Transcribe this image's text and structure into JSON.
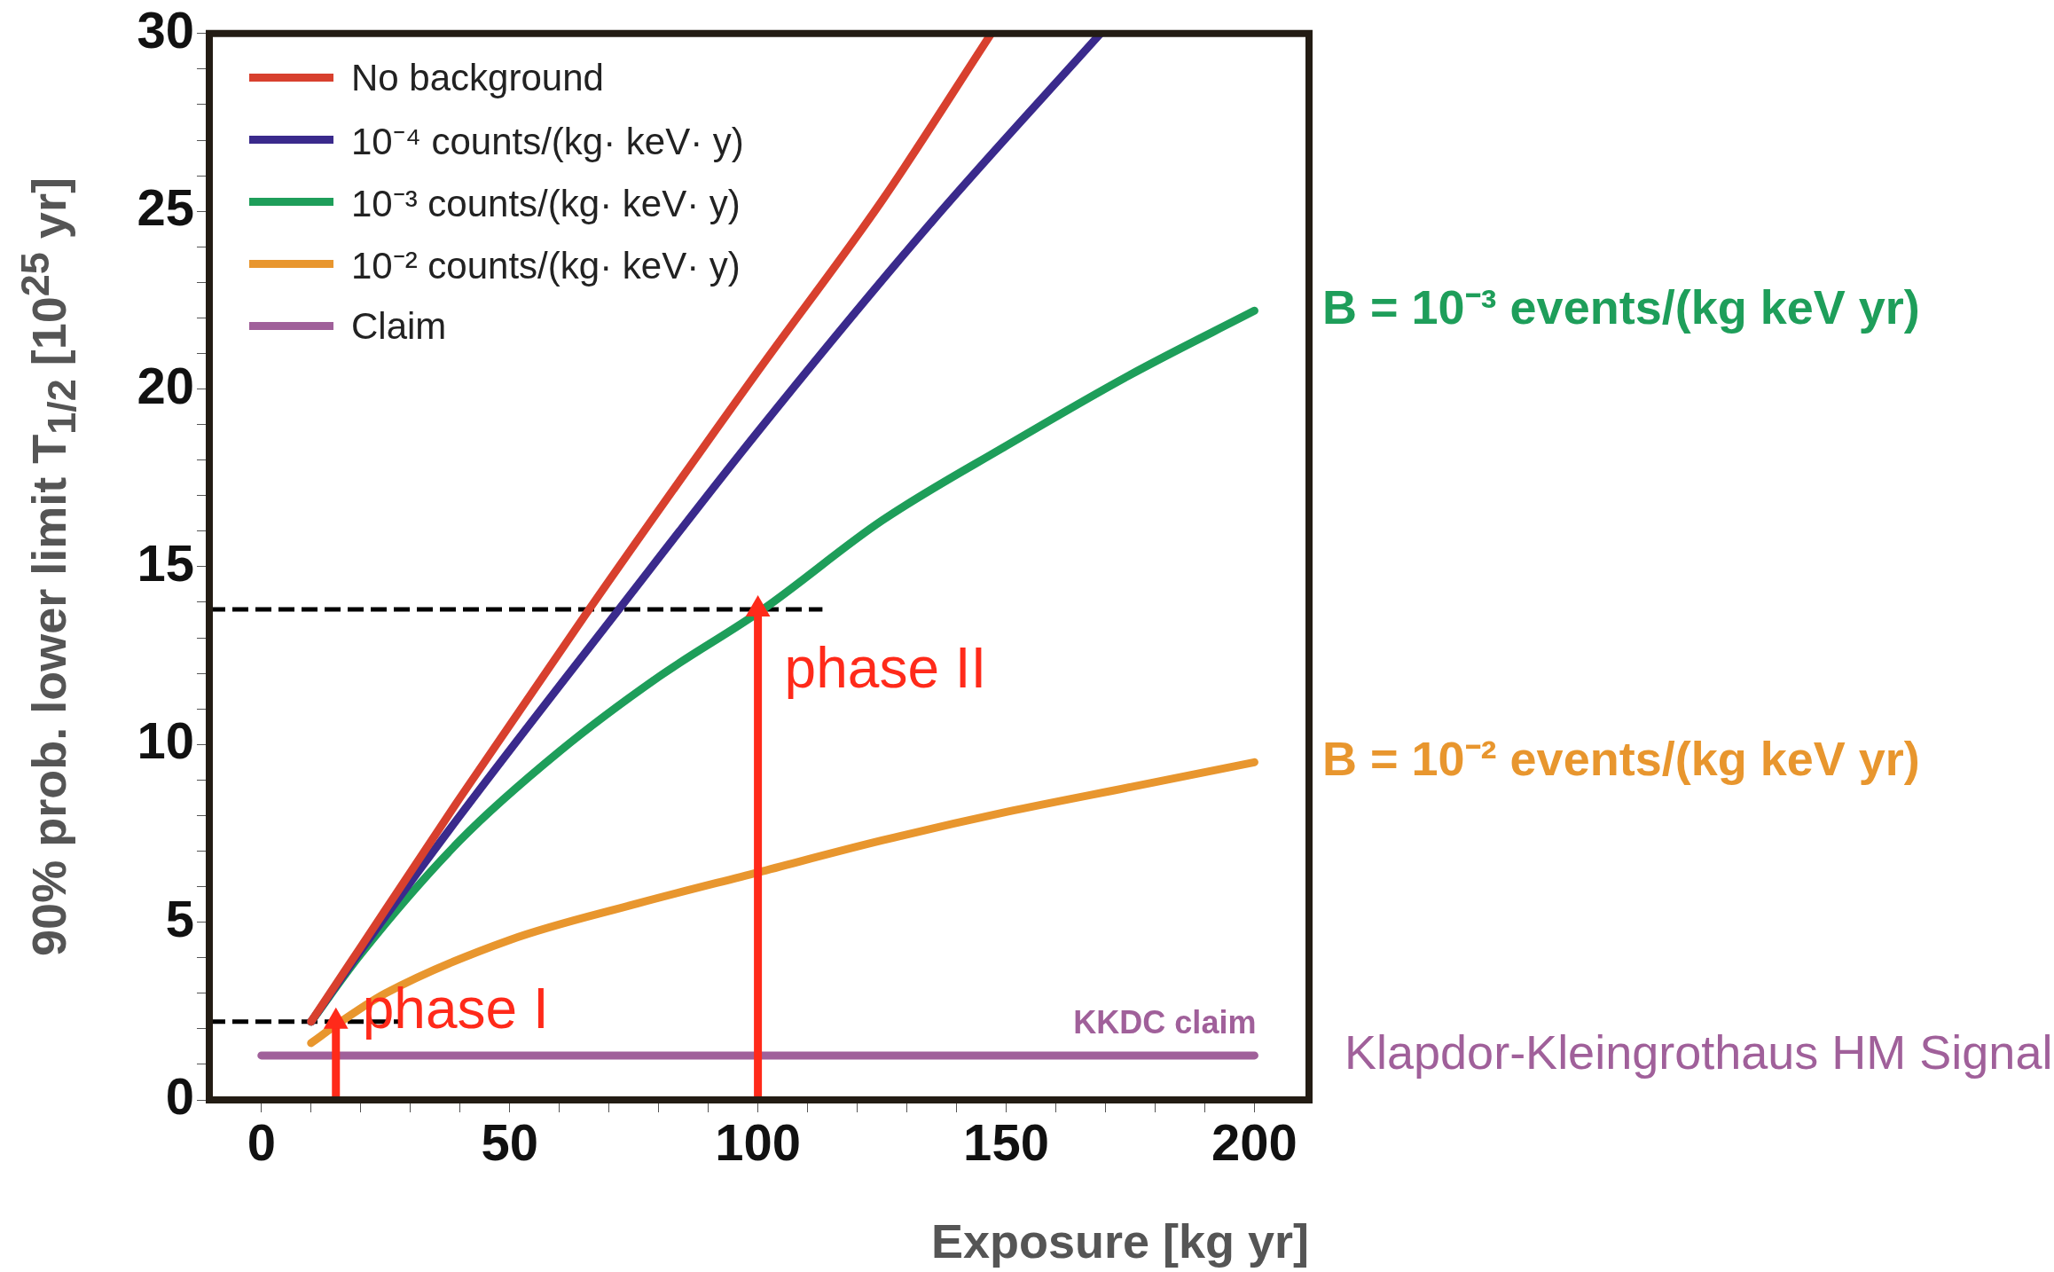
{
  "chart_data": {
    "type": "line",
    "xlabel": "Exposure [kg yr]",
    "ylabel": "90% prob. lower limit T$_{1/2}$ [10$^{25}$ yr]",
    "xlim": [
      -10.5,
      211
    ],
    "ylim": [
      0,
      30
    ],
    "xticks": [
      0,
      {
        "value": 10,
        "label": null
      },
      {
        "value": 20,
        "label": null
      },
      {
        "value": 30,
        "label": null
      },
      {
        "value": 40,
        "label": null
      },
      50,
      {
        "value": 60,
        "label": null
      },
      {
        "value": 70,
        "label": null
      },
      {
        "value": 80,
        "label": null
      },
      {
        "value": 90,
        "label": null
      },
      100,
      {
        "value": 110,
        "label": null
      },
      {
        "value": 120,
        "label": null
      },
      {
        "value": 130,
        "label": null
      },
      {
        "value": 140,
        "label": null
      },
      150,
      {
        "value": 160,
        "label": null
      },
      {
        "value": 170,
        "label": null
      },
      {
        "value": 180,
        "label": null
      },
      {
        "value": 190,
        "label": null
      },
      200
    ],
    "yticks": [
      0,
      {
        "value": 1,
        "label": null
      },
      {
        "value": 2,
        "label": null
      },
      {
        "value": 3,
        "label": null
      },
      {
        "value": 4,
        "label": null
      },
      5,
      {
        "value": 6,
        "label": null
      },
      {
        "value": 7,
        "label": null
      },
      {
        "value": 8,
        "label": null
      },
      {
        "value": 9,
        "label": null
      },
      10,
      {
        "value": 11,
        "label": null
      },
      {
        "value": 12,
        "label": null
      },
      {
        "value": 13,
        "label": null
      },
      {
        "value": 14,
        "label": null
      },
      15,
      {
        "value": 16,
        "label": null
      },
      {
        "value": 17,
        "label": null
      },
      {
        "value": 18,
        "label": null
      },
      {
        "value": 19,
        "label": null
      },
      20,
      {
        "value": 21,
        "label": null
      },
      {
        "value": 22,
        "label": null
      },
      {
        "value": 23,
        "label": null
      },
      {
        "value": 24,
        "label": null
      },
      25,
      {
        "value": 26,
        "label": null
      },
      {
        "value": 27,
        "label": null
      },
      {
        "value": 28,
        "label": null
      },
      {
        "value": 29,
        "label": null
      },
      30
    ],
    "grid": false,
    "legend": "top left",
    "marker": "none",
    "line_style": "solid",
    "series": [
      {
        "name": "No background",
        "color": "#d8402e",
        "x": [
          10,
          20,
          40,
          66,
          100,
          125,
          147
        ],
        "values": [
          2.2,
          4.3,
          8.5,
          13.8,
          20.5,
          25.3,
          30
        ]
      },
      {
        "name": "10⁻⁴ counts/(kg· keV· y)",
        "color": "#3a2a8c",
        "x": [
          10,
          20,
          40,
          72,
          100,
          135,
          169
        ],
        "values": [
          2.2,
          4.2,
          8.0,
          13.8,
          18.8,
          24.7,
          30
        ]
      },
      {
        "name": "10⁻³ counts/(kg· keV· y)",
        "color": "#1e9e5a",
        "x": [
          10,
          20,
          40,
          60,
          80,
          101,
          125,
          150,
          175,
          200
        ],
        "values": [
          2.2,
          4.1,
          7.3,
          9.8,
          11.9,
          13.8,
          16.3,
          18.4,
          20.4,
          22.2
        ]
      },
      {
        "name": "10⁻² counts/(kg· keV· y)",
        "color": "#e8962e",
        "x": [
          10,
          16,
          25,
          50,
          75,
          100,
          125,
          150,
          175,
          200
        ],
        "values": [
          1.6,
          2.2,
          3.0,
          4.5,
          5.5,
          6.4,
          7.3,
          8.1,
          8.8,
          9.5
        ]
      },
      {
        "name": "Claim",
        "color": "#a0609a",
        "x": [
          0,
          200
        ],
        "values": [
          1.25,
          1.25
        ]
      },
      {
        "color": "#000000",
        "line_style": "dashed",
        "x": [
          -10.5,
          113
        ],
        "values": [
          13.8,
          13.8
        ]
      },
      {
        "color": "#000000",
        "line_style": "dashed",
        "x": [
          -10.5,
          28
        ],
        "values": [
          2.2,
          2.2
        ]
      },
      {
        "color": "#ff2a1a",
        "marker": "triangle",
        "x": [
          15,
          15
        ],
        "values": [
          0,
          2.2
        ]
      },
      {
        "color": "#ff2a1a",
        "marker": "triangle",
        "x": [
          100,
          100
        ],
        "values": [
          0,
          13.8
        ]
      }
    ],
    "annotations": [
      {
        "text": "phase I",
        "x": 15,
        "y": 2.2
      },
      {
        "text": "phase II",
        "x": 100,
        "y": 13.8
      },
      {
        "text": "KKDC claim",
        "x": 200,
        "y": 1.25
      },
      {
        "text": "B = 10⁻³ events/(kg keV yr)",
        "x": 200,
        "y": 22.2
      },
      {
        "text": "B = 10⁻² events/(kg keV yr)",
        "x": 200,
        "y": 9.5
      },
      {
        "text": "Klapdor-Kleingrothaus HM Signal",
        "x": 200,
        "y": 1.25
      }
    ]
  }
}
